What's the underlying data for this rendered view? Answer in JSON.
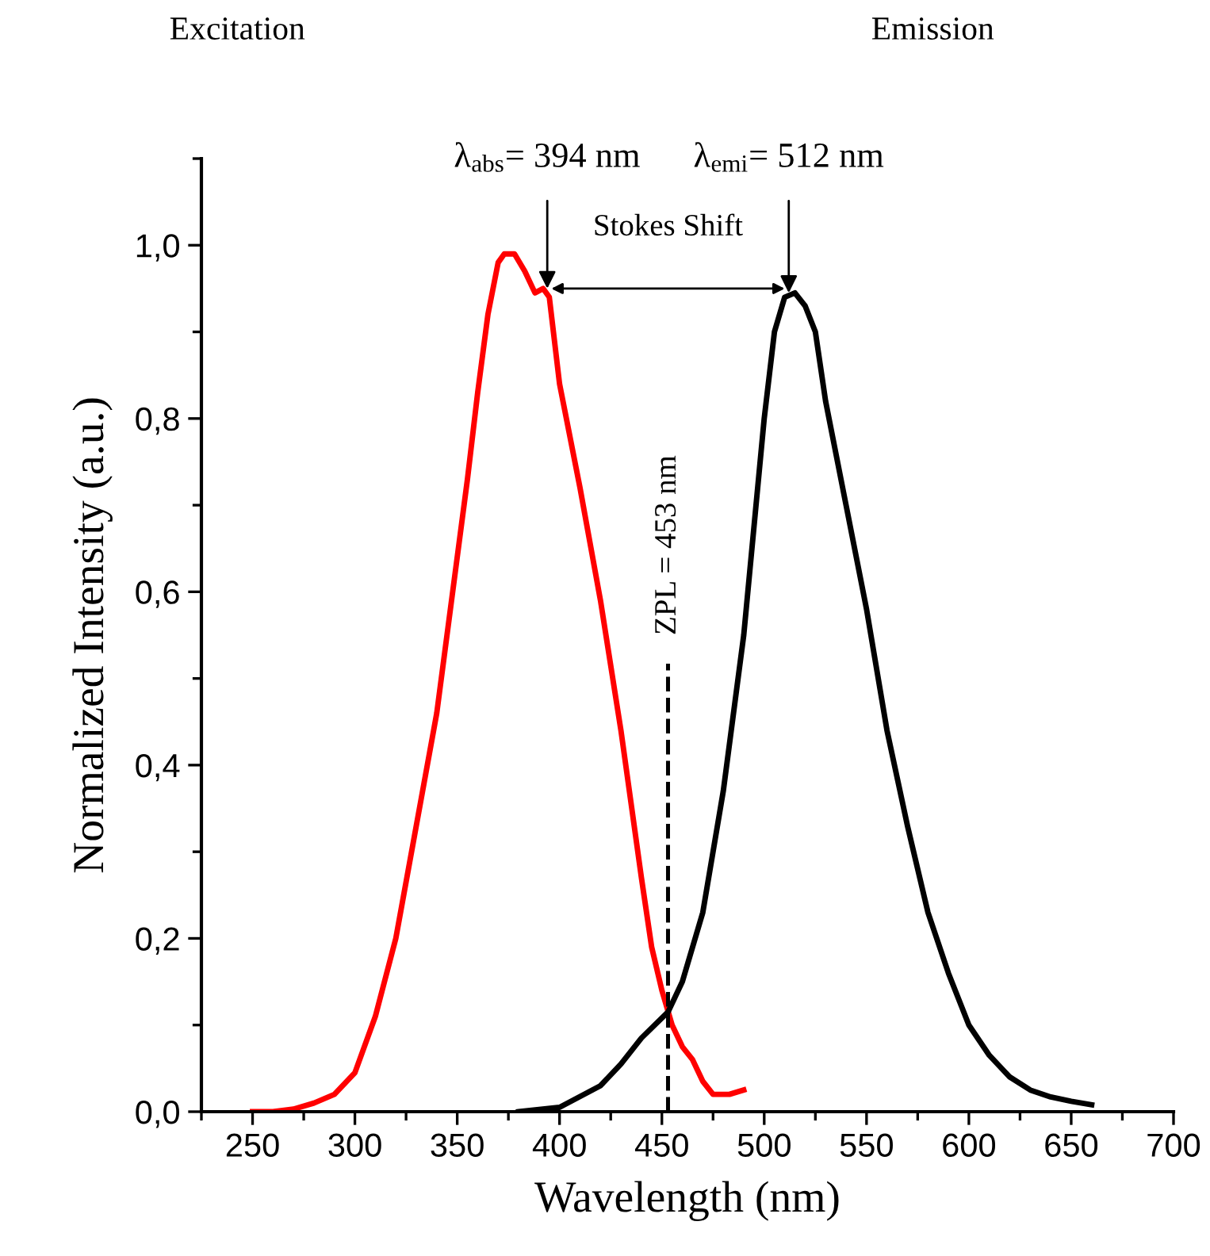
{
  "chart_data": {
    "type": "line",
    "xlabel": "Wavelength (nm)",
    "ylabel": "Normalized Intensity (a.u.)",
    "series": [
      {
        "color": "#ff0000",
        "x": [
          250,
          260,
          270,
          280,
          290,
          300,
          310,
          320,
          330,
          340,
          350,
          355,
          360,
          365,
          370,
          373,
          378,
          383,
          388,
          392,
          395,
          400,
          410,
          420,
          430,
          440,
          445,
          450,
          455,
          460,
          465,
          470,
          475,
          483,
          490
        ],
        "values": [
          0.0,
          0.0,
          0.003,
          0.01,
          0.02,
          0.045,
          0.11,
          0.2,
          0.33,
          0.46,
          0.64,
          0.73,
          0.83,
          0.92,
          0.98,
          0.99,
          0.99,
          0.97,
          0.945,
          0.95,
          0.94,
          0.84,
          0.72,
          0.59,
          0.44,
          0.27,
          0.19,
          0.14,
          0.1,
          0.075,
          0.06,
          0.035,
          0.02,
          0.02,
          0.025
        ]
      },
      {
        "color": "#000000",
        "x": [
          380,
          400,
          420,
          430,
          440,
          453,
          460,
          470,
          480,
          490,
          500,
          505,
          510,
          515,
          520,
          525,
          530,
          540,
          550,
          560,
          570,
          580,
          590,
          600,
          610,
          620,
          630,
          640,
          650,
          660
        ],
        "values": [
          0.0,
          0.005,
          0.03,
          0.055,
          0.085,
          0.115,
          0.15,
          0.23,
          0.37,
          0.55,
          0.8,
          0.9,
          0.94,
          0.945,
          0.93,
          0.9,
          0.82,
          0.7,
          0.58,
          0.44,
          0.33,
          0.23,
          0.16,
          0.1,
          0.065,
          0.04,
          0.025,
          0.017,
          0.012,
          0.008
        ]
      }
    ],
    "xlim": [
      225,
      700
    ],
    "ylim": [
      0,
      1.1
    ],
    "xticks": [
      250,
      300,
      350,
      400,
      450,
      500,
      550,
      600,
      650,
      700
    ],
    "yticks": [
      {
        "value": 0,
        "label": "0,0"
      },
      {
        "value": 0.2,
        "label": "0,2"
      },
      {
        "value": 0.4,
        "label": "0,4"
      },
      {
        "value": 0.6,
        "label": "0,6"
      },
      {
        "value": 0.8,
        "label": "0,8"
      },
      {
        "value": 1.0,
        "label": "1,0"
      }
    ],
    "grid": false,
    "legend": false,
    "marker": "none",
    "line_style": "solid",
    "ref_lines": [
      {
        "axis": "x",
        "value": 453,
        "label": "ZPL = 453 nm",
        "line_style": "dashed",
        "color": "#000000"
      }
    ],
    "annotations": [
      "Excitation",
      "Emission",
      {
        "text": "λ$_{abs}$= 394 nm",
        "x": 394,
        "y": 0.95
      },
      {
        "text": "λ$_{emi}$= 512 nm",
        "x": 512,
        "y": 0.945
      },
      "Stokes Shift"
    ]
  }
}
